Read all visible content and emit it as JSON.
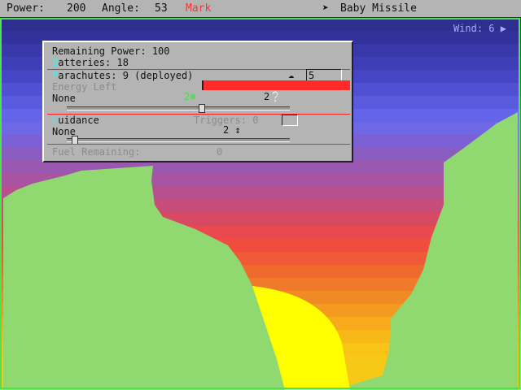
{
  "status_bar": {
    "power_label": "Power:",
    "power": "200",
    "angle_label": "Angle:",
    "angle": "53",
    "player": "Mark",
    "player_color": "#ff3030",
    "weapon_icon": "missile-icon",
    "weapon": "Baby Missile"
  },
  "wind": {
    "label": "Wind: 6",
    "direction": "right"
  },
  "colors": {
    "terrain": "#90d870",
    "sky_top": "#2e2e8e"
  },
  "panel": {
    "remaining_power": "Remaining Power: 100",
    "batteries_hot": "B",
    "batteries": "atteries: 18",
    "parachutes_hot": "P",
    "parachutes": "arachutes: 9 (deployed)",
    "parachute_threshold": "5",
    "energy_label": "Energy Left",
    "energy_fraction": 1.0,
    "shield_name": "None",
    "shield_count": "2",
    "shield_count2": "2",
    "shield_slider": 0.6,
    "guidance_hot": "G",
    "guidance": "uidance",
    "triggers": "Triggers: 0",
    "guidance_name": "None",
    "guidance_count": "2",
    "guidance_slider": 0.02,
    "fuel_label": "Fuel Remaining:",
    "fuel": "0"
  }
}
